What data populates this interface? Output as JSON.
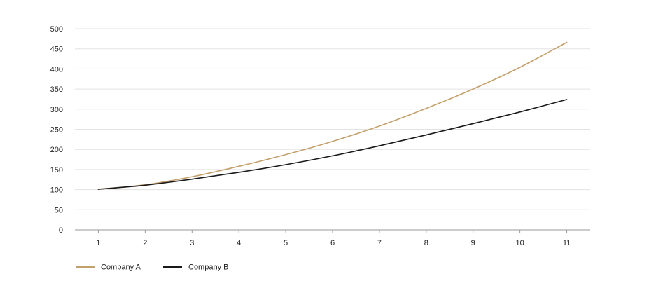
{
  "chart_data": {
    "type": "line",
    "title": "",
    "xlabel": "",
    "ylabel": "",
    "x": [
      1,
      2,
      3,
      4,
      5,
      6,
      7,
      8,
      9,
      10,
      11
    ],
    "x_tick_labels": [
      "1",
      "2",
      "3",
      "4",
      "5",
      "6",
      "7",
      "8",
      "9",
      "10",
      "11"
    ],
    "xlim": [
      0.5,
      11.5
    ],
    "y_ticks": [
      0,
      50,
      100,
      150,
      200,
      250,
      300,
      350,
      400,
      450,
      500
    ],
    "y_tick_labels": [
      "0",
      "50",
      "100",
      "150",
      "200",
      "250",
      "300",
      "350",
      "400",
      "450",
      "500"
    ],
    "ylim": [
      0,
      500
    ],
    "grid": "horizontal",
    "legend_position": "bottom-left",
    "series": [
      {
        "name": "Company A",
        "color": "#c4a06c",
        "values": [
          101,
          112,
          132,
          158,
          187,
          220,
          258,
          302,
          350,
          404,
          466
        ]
      },
      {
        "name": "Company B",
        "color": "#1a1a1a",
        "values": [
          101,
          111,
          126,
          143,
          162,
          184,
          209,
          236,
          264,
          293,
          324
        ]
      }
    ]
  }
}
